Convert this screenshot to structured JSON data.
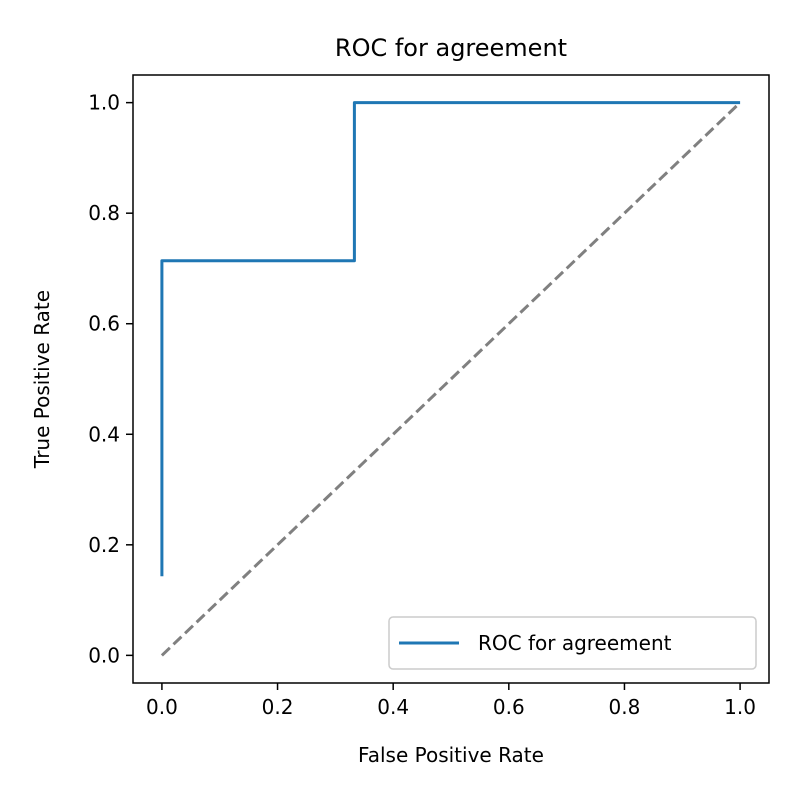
{
  "chart_data": {
    "type": "line",
    "title": "ROC for agreement",
    "xlabel": "False Positive Rate",
    "ylabel": "True Positive Rate",
    "xlim": [
      -0.05,
      1.05
    ],
    "ylim": [
      -0.05,
      1.05
    ],
    "xticks": [
      "0.0",
      "0.2",
      "0.4",
      "0.6",
      "0.8",
      "1.0"
    ],
    "yticks": [
      "0.0",
      "0.2",
      "0.4",
      "0.6",
      "0.8",
      "1.0"
    ],
    "grid": false,
    "legend_position": "lower-right",
    "series": [
      {
        "name": "ROC for agreement",
        "color": "#1f77b4",
        "style": "solid",
        "x": [
          0.0,
          0.0,
          0.0,
          0.333,
          0.333,
          1.0
        ],
        "y": [
          0.143,
          0.714,
          0.714,
          0.714,
          1.0,
          1.0
        ]
      },
      {
        "color": "#808080",
        "style": "dashed",
        "x": [
          0.0,
          1.0
        ],
        "y": [
          0.0,
          1.0
        ]
      }
    ]
  }
}
